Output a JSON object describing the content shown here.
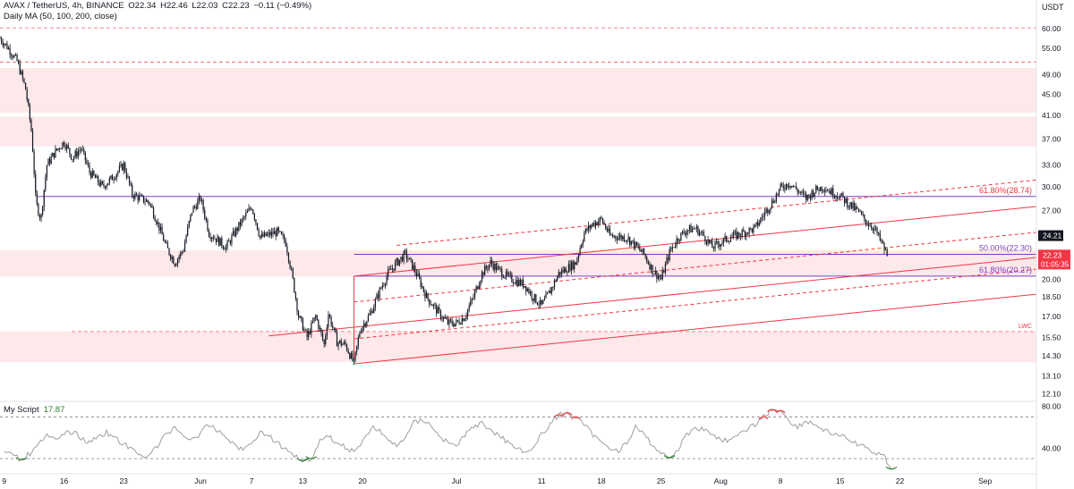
{
  "header": {
    "symbol": "AVAX / TetherUS, 4h, BINANCE",
    "open": "O22.34",
    "high": "H22.46",
    "low": "L22.03",
    "close": "C22.23",
    "change": "−0.11 (−0.49%)",
    "indicator": "Daily MA (50, 100, 200, close)"
  },
  "oscillator": {
    "name": "My Script",
    "value": "17.87"
  },
  "price_axis": {
    "currency": "USDT"
  },
  "chart_data": [
    {
      "type": "candlestick",
      "title": "",
      "y_scale": "log",
      "y_ticks": [
        "60.00",
        "55.00",
        "49.00",
        "45.00",
        "41.00",
        "37.00",
        "33.00",
        "30.00",
        "27.00",
        "24.00",
        "22.00",
        "20.00",
        "18.50",
        "17.00",
        "15.50",
        "14.30",
        "13.10",
        "12.10"
      ],
      "x_ticks": [
        "9",
        "16",
        "23",
        "Jun",
        "7",
        "13",
        "20",
        "Jul",
        "11",
        "18",
        "25",
        "Aug",
        "8",
        "15",
        "22",
        "Sep"
      ],
      "x_tick_days": [
        9,
        16,
        23,
        32,
        38,
        44,
        51,
        62,
        72,
        79,
        86,
        93,
        100,
        107,
        114,
        124
      ],
      "x_range_days": [
        8.5,
        130
      ],
      "y_range": [
        11.8,
        68
      ],
      "price_path": [
        [
          8.5,
          57.5
        ],
        [
          9.5,
          55
        ],
        [
          10.5,
          52
        ],
        [
          11.5,
          46
        ],
        [
          12.2,
          38
        ],
        [
          12.7,
          28
        ],
        [
          13.3,
          26
        ],
        [
          14,
          33
        ],
        [
          15,
          35
        ],
        [
          16,
          36.5
        ],
        [
          17,
          34
        ],
        [
          18,
          35.5
        ],
        [
          19,
          32
        ],
        [
          20.5,
          30
        ],
        [
          21.5,
          31
        ],
        [
          23,
          33
        ],
        [
          24,
          29
        ],
        [
          26,
          28
        ],
        [
          28,
          23
        ],
        [
          29,
          21.5
        ],
        [
          30,
          22.8
        ],
        [
          31,
          27
        ],
        [
          32,
          28.5
        ],
        [
          33,
          24.5
        ],
        [
          35,
          23
        ],
        [
          37,
          26
        ],
        [
          38,
          27.5
        ],
        [
          39,
          24
        ],
        [
          41,
          24.6
        ],
        [
          42,
          23.5
        ],
        [
          43.5,
          17
        ],
        [
          44.5,
          15.5
        ],
        [
          45.5,
          17
        ],
        [
          46.5,
          15
        ],
        [
          47,
          17.2
        ],
        [
          48,
          15.2
        ],
        [
          49,
          15
        ],
        [
          50,
          13.8
        ],
        [
          50.7,
          16
        ],
        [
          52,
          17.3
        ],
        [
          53,
          19
        ],
        [
          54,
          20.5
        ],
        [
          55,
          21.5
        ],
        [
          56,
          22.3
        ],
        [
          57,
          21
        ],
        [
          58.5,
          18.5
        ],
        [
          60,
          17.2
        ],
        [
          61,
          16.5
        ],
        [
          62,
          16.5
        ],
        [
          63,
          17
        ],
        [
          64,
          18.5
        ],
        [
          65,
          20.5
        ],
        [
          66,
          21.5
        ],
        [
          67,
          20.8
        ],
        [
          68,
          20.2
        ],
        [
          70,
          19.5
        ],
        [
          71,
          18.5
        ],
        [
          72,
          17.8
        ],
        [
          73,
          19
        ],
        [
          74,
          20.5
        ],
        [
          76,
          21.5
        ],
        [
          77,
          24.5
        ],
        [
          78,
          25.5
        ],
        [
          79,
          26
        ],
        [
          80,
          24.2
        ],
        [
          82,
          24
        ],
        [
          84,
          22.3
        ],
        [
          85,
          20.8
        ],
        [
          86,
          20
        ],
        [
          87,
          22.5
        ],
        [
          88,
          24
        ],
        [
          89,
          24.8
        ],
        [
          90,
          25
        ],
        [
          91,
          24.2
        ],
        [
          92,
          23
        ],
        [
          93,
          23.5
        ],
        [
          94,
          24
        ],
        [
          95,
          24.3
        ],
        [
          97,
          25
        ],
        [
          98,
          26.5
        ],
        [
          99,
          28
        ],
        [
          100,
          29.8
        ],
        [
          101,
          30.5
        ],
        [
          102,
          29.5
        ],
        [
          103,
          28.5
        ],
        [
          104,
          29.5
        ],
        [
          105,
          30
        ],
        [
          106,
          29.3
        ],
        [
          107,
          28.8
        ],
        [
          108,
          27.8
        ],
        [
          109,
          27
        ],
        [
          110,
          25.8
        ],
        [
          111,
          25
        ],
        [
          112.5,
          22.2
        ]
      ]
    },
    {
      "type": "line",
      "title": "My Script",
      "y_ticks": [
        "80.00",
        "40.00"
      ],
      "levels": [
        70,
        30
      ],
      "ylim": [
        18,
        84
      ],
      "x": [
        9,
        10,
        11,
        12,
        13,
        14,
        15,
        16,
        17,
        18,
        19,
        20,
        21,
        22,
        23,
        24,
        25,
        26,
        27,
        28,
        29,
        30,
        31,
        32,
        33,
        34,
        35,
        36,
        37,
        38,
        39,
        40,
        41,
        42,
        43,
        44,
        45,
        46,
        47,
        48,
        49,
        50,
        51,
        52,
        53,
        54,
        55,
        56,
        57,
        58,
        59,
        60,
        61,
        62,
        63,
        64,
        65,
        66,
        67,
        68,
        69,
        70,
        71,
        72,
        73,
        74,
        75,
        76,
        77,
        78,
        79,
        80,
        81,
        82,
        83,
        84,
        85,
        86,
        87,
        88,
        89,
        90,
        91,
        92,
        93,
        94,
        95,
        96,
        97,
        98,
        99,
        100,
        101,
        102,
        103,
        104,
        105,
        106,
        107,
        108,
        109,
        110,
        111,
        112,
        113
      ],
      "y": [
        38,
        33,
        29,
        35,
        46,
        52,
        47,
        53,
        56,
        50,
        45,
        52,
        55,
        49,
        44,
        38,
        33,
        34,
        42,
        54,
        60,
        53,
        47,
        55,
        62,
        57,
        51,
        43,
        38,
        46,
        55,
        52,
        45,
        38,
        34,
        28,
        30,
        47,
        53,
        44,
        41,
        37,
        45,
        60,
        57,
        47,
        42,
        51,
        64,
        68,
        62,
        52,
        45,
        42,
        53,
        60,
        64,
        58,
        52,
        46,
        42,
        36,
        40,
        53,
        63,
        72,
        74,
        70,
        62,
        53,
        45,
        41,
        38,
        45,
        60,
        53,
        43,
        35,
        31,
        39,
        53,
        60,
        58,
        53,
        49,
        47,
        51,
        58,
        63,
        70,
        77,
        76,
        67,
        60,
        66,
        63,
        58,
        54,
        52,
        48,
        44,
        40,
        36,
        34,
        20
      ]
    }
  ],
  "annotations": {
    "fib_618_upper": "61.80%(28.74)",
    "fib_50": "50.00%(22.30)",
    "fib_618_lower": "61.80%(20.27)",
    "lwc": "LWC",
    "ma_label": "24.21",
    "current_price": "22.23",
    "countdown": "01:05:35"
  },
  "colors": {
    "up": "#131722",
    "down": "#131722",
    "zone": "#fde8ea",
    "channel": "#f23645",
    "fib": "#7b3fc4",
    "osc_line": "#9e9e9e",
    "osc_low": "#2e7d32",
    "osc_high": "#e53935",
    "price_label": "#f23645",
    "ma_label_bg": "#131722"
  }
}
